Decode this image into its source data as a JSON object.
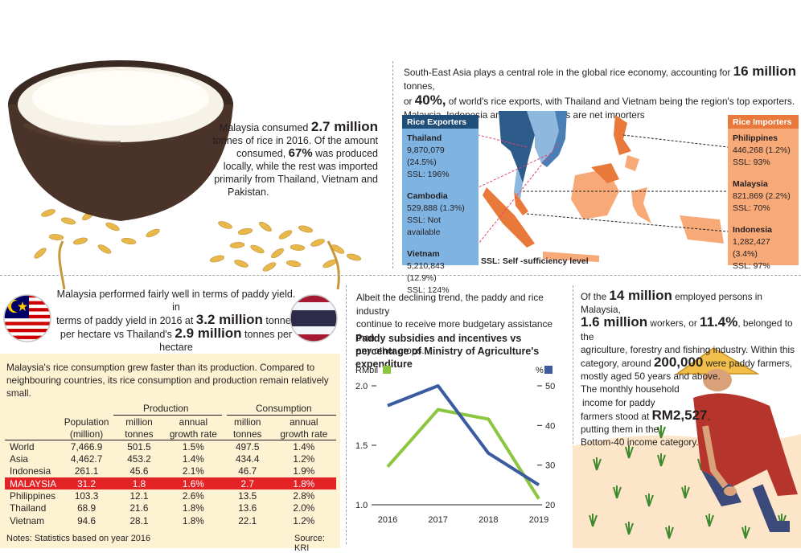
{
  "intro": {
    "consumed_pre": "Malaysia consumed ",
    "consumed_big": "2.7 million",
    "consumed_l2": "tonnes of rice in 2016. Of the amount",
    "consumed_l3a": "consumed, ",
    "consumed_pct": "67%",
    "consumed_l3b": " was produced",
    "consumed_l4": "locally, while the rest was imported",
    "consumed_l5": "primarily from Thailand, Vietnam and",
    "consumed_l6": "Pakistan."
  },
  "sea": {
    "l1a": "South-East Asia plays a central role in the global rice economy, accounting for ",
    "l1big": "16 million",
    "l1b": " tonnes,",
    "l2a": "or ",
    "l2big": "40%,",
    "l2b": " of world's rice exports, with Thailand and Vietnam being the region's top exporters.",
    "l3": "Malaysia, Indonesia and the Philippines are net importers"
  },
  "exporters": {
    "title": "Rice Exporters",
    "items": [
      {
        "country": "Thailand",
        "volume": "9,870,079 (24.5%)",
        "ssl": "SSL: 196%"
      },
      {
        "country": "Cambodia",
        "volume": "529,888 (1.3%)",
        "ssl": "SSL: Not available"
      },
      {
        "country": "Vietnam",
        "volume": "5,210,843 (12.9%)",
        "ssl": "SSL: 124%"
      }
    ]
  },
  "importers": {
    "title": "Rice Importers",
    "items": [
      {
        "country": "Philippines",
        "volume": "446,268 (1.2%)",
        "ssl": "SSL: 93%"
      },
      {
        "country": "Malaysia",
        "volume": "821,869 (2.2%)",
        "ssl": "SSL: 70%"
      },
      {
        "country": "Indonesia",
        "volume": "1,282,427 (3.4%)",
        "ssl": "SSL: 97%"
      }
    ]
  },
  "ssl_note": "SSL: Self -sufficiency level",
  "yield": {
    "l1": "Malaysia performed fairly well in terms of paddy yield. in",
    "l2a": "terms of paddy yield in 2016 at ",
    "l2big": "3.2 million",
    "l2b": " tonnes",
    "l3a": "per hectare vs Thailand's ",
    "l3big": "2.9 million",
    "l3b": " tonnes per",
    "l4": "hectare"
  },
  "consumption_note": {
    "l1": "Malaysia's rice consumption grew faster than its production. Compared to",
    "l2": "neighbouring countries, its rice consumption and production remain relatively",
    "l3": "small."
  },
  "table": {
    "group_production": "Production",
    "group_consumption": "Consumption",
    "headers": [
      [
        "",
        ""
      ],
      [
        "Population",
        "(million)"
      ],
      [
        "million",
        "tonnes"
      ],
      [
        "annual",
        "growth rate"
      ],
      [
        "million",
        "tonnes"
      ],
      [
        "annual",
        "growth rate"
      ]
    ],
    "rows": [
      [
        "World",
        "7,466.9",
        "501.5",
        "1.5%",
        "497.5",
        "1.4%"
      ],
      [
        "Asia",
        "4,462.7",
        "453.2",
        "1.4%",
        "434.4",
        "1.2%"
      ],
      [
        "Indonesia",
        "261.1",
        "45.6",
        "2.1%",
        "46.7",
        "1.9%"
      ],
      [
        "MALAYSIA",
        "31.2",
        "1.8",
        "1.6%",
        "2.7",
        "1.8%"
      ],
      [
        "Philippines",
        "103.3",
        "12.1",
        "2.6%",
        "13.5",
        "2.8%"
      ],
      [
        "Thailand",
        "68.9",
        "21.6",
        "1.8%",
        "13.6",
        "2.0%"
      ],
      [
        "Vietnam",
        "94.6",
        "28.1",
        "1.8%",
        "22.1",
        "1.2%"
      ]
    ],
    "notes": "Notes: Statistics based on year 2016",
    "source": "Source: KRI"
  },
  "budget": {
    "l1": "Albeit the declining trend, the paddy and rice industry",
    "l2": "continue to receive more budgetary assistance than",
    "l3": "any other crops."
  },
  "chart_data": {
    "type": "line",
    "title": "Paddy subsidies and incentives vs percentage of Ministry of Agriculture's expenditure",
    "x": [
      "2016",
      "2017",
      "2018",
      "2019"
    ],
    "series": [
      {
        "name": "RMbil",
        "axis": "left",
        "color": "#8cc63f",
        "values": [
          1.32,
          1.8,
          1.72,
          1.05
        ]
      },
      {
        "name": "%",
        "axis": "right",
        "color": "#3a5ba0",
        "values": [
          45,
          50,
          33,
          25
        ]
      }
    ],
    "yleft": {
      "label": "RMbil",
      "ticks": [
        "2.0",
        "1.5",
        "1.0"
      ],
      "range": [
        1.0,
        2.0
      ]
    },
    "yright": {
      "label": "%",
      "ticks": [
        "50",
        "40",
        "30",
        "20"
      ],
      "range": [
        20,
        50
      ]
    },
    "grid": false
  },
  "employment": {
    "l1a": "Of the ",
    "l1big": "14 million",
    "l1b": " employed persons in Malaysia,",
    "l2big1": "1.6 million",
    "l2a": " workers, or ",
    "l2big2": "11.4%",
    "l2b": ", belonged to the",
    "l3": "agriculture, forestry and fishing industry. Within this",
    "l4a": "category, around ",
    "l4big": "200,000",
    "l4b": " were paddy farmers,",
    "l5": "mostly aged 50 years and above.",
    "l6": "The monthly household",
    "l7": "income for paddy",
    "l8a": "farmers stood at ",
    "l8big": "RM2,527",
    "l8b": ",",
    "l9": "putting them in the",
    "l10": "Bottom-40 income category."
  },
  "colors": {
    "exporter_blue": "#7fb3e1",
    "exporter_title": "#1f4e79",
    "importer_orange": "#f7a978",
    "importer_title": "#e8793a",
    "highlight_red": "#e42327",
    "cream": "#fdf3d3",
    "line_green": "#8cc63f",
    "line_blue": "#3a5ba0"
  }
}
